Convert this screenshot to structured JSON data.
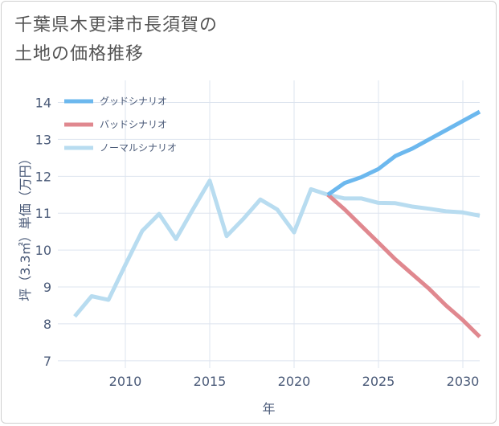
{
  "title_line1": "千葉県木更津市長須賀の",
  "title_line2": "土地の価格推移",
  "chart_data": {
    "type": "line",
    "title": "千葉県木更津市長須賀の土地の価格推移",
    "xlabel": "年",
    "ylabel": "坪（3.3㎡）単価（万円）",
    "xlim": [
      2006,
      2031
    ],
    "ylim": [
      6.8,
      14.6
    ],
    "x_ticks": [
      2010,
      2015,
      2020,
      2025,
      2030
    ],
    "y_ticks": [
      7,
      8,
      9,
      10,
      11,
      12,
      13,
      14
    ],
    "grid": true,
    "legend_position": "top-left",
    "series": [
      {
        "name": "グッドシナリオ",
        "color": "#6cb8ee",
        "x": [
          2022,
          2023,
          2024,
          2025,
          2026,
          2027,
          2028,
          2029,
          2030,
          2031
        ],
        "values": [
          11.5,
          11.82,
          11.98,
          12.2,
          12.55,
          12.75,
          13.0,
          13.25,
          13.5,
          13.75
        ]
      },
      {
        "name": "バッドシナリオ",
        "color": "#e0888f",
        "x": [
          2022,
          2023,
          2024,
          2025,
          2026,
          2027,
          2028,
          2029,
          2030,
          2031
        ],
        "values": [
          11.5,
          11.1,
          10.65,
          10.2,
          9.75,
          9.35,
          8.95,
          8.5,
          8.1,
          7.65
        ]
      },
      {
        "name": "ノーマルシナリオ",
        "color": "#b8dcf0",
        "x": [
          2007,
          2008,
          2009,
          2010,
          2011,
          2012,
          2013,
          2014,
          2015,
          2016,
          2017,
          2018,
          2019,
          2020,
          2021,
          2022,
          2023,
          2024,
          2025,
          2026,
          2027,
          2028,
          2029,
          2030,
          2031
        ],
        "values": [
          8.2,
          8.75,
          8.65,
          9.6,
          10.52,
          10.98,
          10.3,
          11.1,
          11.88,
          10.38,
          10.85,
          11.37,
          11.1,
          10.48,
          11.65,
          11.5,
          11.4,
          11.4,
          11.28,
          11.27,
          11.18,
          11.12,
          11.05,
          11.02,
          10.93
        ]
      }
    ]
  }
}
